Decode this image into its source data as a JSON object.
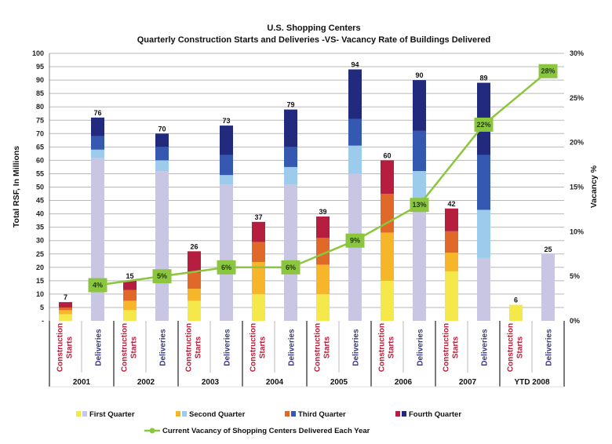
{
  "chart_data": {
    "type": "bar",
    "subtype": "stacked-bar-with-line",
    "title": "U.S. Shopping Centers",
    "subtitle": "Quarterly Construction Starts and Deliveries -VS- Vacancy Rate of Buildings Delivered",
    "ylabel": "Total RSF, In Millions",
    "y2label": "Vacancy %",
    "ylim": [
      0,
      100
    ],
    "y2lim": [
      0,
      30
    ],
    "yticks": [
      "-",
      "5",
      "10",
      "15",
      "20",
      "25",
      "30",
      "35",
      "40",
      "45",
      "50",
      "55",
      "60",
      "65",
      "70",
      "75",
      "80",
      "85",
      "90",
      "95",
      "100"
    ],
    "y2ticks": [
      "0%",
      "5%",
      "10%",
      "15%",
      "20%",
      "25%",
      "30%"
    ],
    "grid": true,
    "groups": [
      "2001",
      "2002",
      "2003",
      "2004",
      "2005",
      "2006",
      "2007",
      "YTD 2008"
    ],
    "subcategories": [
      "Construction Starts",
      "Deliveries"
    ],
    "subcategory_lines": {
      "starts": [
        "Construction",
        "Starts"
      ],
      "deliveries": [
        "Deliveries"
      ]
    },
    "quarters": [
      "First Quarter",
      "Second Quarter",
      "Third Quarter",
      "Fourth Quarter"
    ],
    "colors": {
      "starts": [
        "#f5e84a",
        "#f7b52a",
        "#e0692a",
        "#b51e3e"
      ],
      "deliveries": [
        "#c8c6e2",
        "#9ccbec",
        "#3559b0",
        "#222a7e"
      ],
      "line": "#8cc63e",
      "marker": "#8cc63e"
    },
    "starts": {
      "totals": [
        7,
        15,
        26,
        37,
        39,
        60,
        42,
        6
      ],
      "series": [
        {
          "name": "First Quarter",
          "values": [
            2.5,
            4,
            7.5,
            10,
            10,
            15,
            18.5,
            6
          ]
        },
        {
          "name": "Second Quarter",
          "values": [
            1.5,
            3.5,
            4.5,
            12,
            11,
            18,
            7,
            0
          ]
        },
        {
          "name": "Third Quarter",
          "values": [
            1,
            4,
            6,
            7.5,
            10,
            14.5,
            8,
            0
          ]
        },
        {
          "name": "Fourth Quarter",
          "values": [
            2,
            3.5,
            8,
            7.5,
            8,
            12.5,
            8.5,
            0
          ]
        }
      ]
    },
    "deliveries": {
      "totals": [
        76,
        70,
        73,
        79,
        94,
        90,
        89,
        25
      ],
      "series": [
        {
          "name": "First Quarter",
          "values": [
            61,
            56,
            51,
            51,
            55,
            42,
            23.5,
            25
          ]
        },
        {
          "name": "Second Quarter",
          "values": [
            3,
            4,
            3.5,
            6.5,
            10.5,
            14,
            18,
            0
          ]
        },
        {
          "name": "Third Quarter",
          "values": [
            5,
            5,
            7.5,
            7.5,
            10,
            15,
            20.5,
            0
          ]
        },
        {
          "name": "Fourth Quarter",
          "values": [
            7,
            5,
            11,
            14,
            18.5,
            19,
            27,
            0
          ]
        }
      ]
    },
    "vacancy": {
      "name": "Current Vacancy of Shopping Centers Delivered Each Year",
      "values": [
        4,
        5,
        6,
        6,
        9,
        13,
        22,
        28
      ],
      "labels": [
        "4%",
        "5%",
        "6%",
        "6%",
        "9%",
        "13%",
        "22%",
        "28%"
      ]
    },
    "legend": {
      "placement": "bottom",
      "items": [
        "First Quarter",
        "Second Quarter",
        "Third Quarter",
        "Fourth Quarter"
      ],
      "line_item": "Current Vacancy of Shopping Centers Delivered Each Year"
    }
  }
}
